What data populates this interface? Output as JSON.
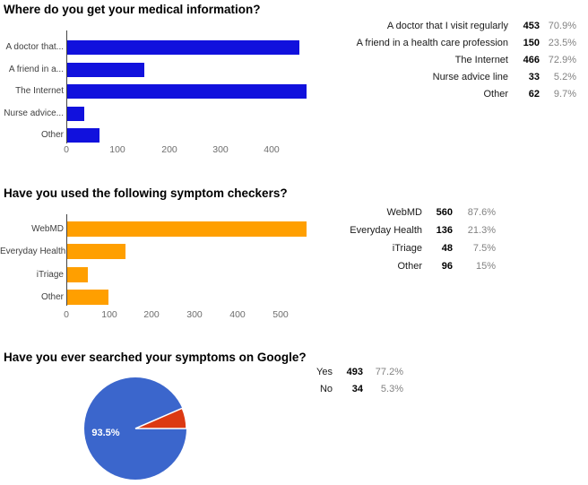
{
  "chart_data": [
    {
      "type": "bar",
      "orientation": "horizontal",
      "title": "Where do you get your medical information?",
      "categories": [
        "A doctor that...",
        "A friend in a...",
        "The Internet",
        "Nurse advice...",
        "Other"
      ],
      "values": [
        453,
        150,
        466,
        33,
        62
      ],
      "bar_color": "#1111dd",
      "xlim": [
        0,
        550
      ],
      "ticks": [
        0,
        100,
        200,
        300,
        400
      ],
      "grid": false,
      "legend": "none",
      "summary_table": {
        "rows": [
          {
            "label": "A doctor that I visit regularly",
            "value": "453",
            "percent": "70.9%"
          },
          {
            "label": "A friend in a health care profession",
            "value": "150",
            "percent": "23.5%"
          },
          {
            "label": "The Internet",
            "value": "466",
            "percent": "72.9%"
          },
          {
            "label": "Nurse advice line",
            "value": "33",
            "percent": "5.2%"
          },
          {
            "label": "Other",
            "value": "62",
            "percent": "9.7%"
          }
        ]
      }
    },
    {
      "type": "bar",
      "orientation": "horizontal",
      "title": "Have you used the following symptom checkers?",
      "categories": [
        "WebMD",
        "Everyday Health",
        "iTriage",
        "Other"
      ],
      "values": [
        560,
        136,
        48,
        96
      ],
      "bar_color": "#ff9f00",
      "xlim": [
        0,
        660
      ],
      "ticks": [
        0,
        100,
        200,
        300,
        400,
        500
      ],
      "grid": false,
      "legend": "none",
      "summary_table": {
        "rows": [
          {
            "label": "WebMD",
            "value": "560",
            "percent": "87.6%"
          },
          {
            "label": "Everyday Health",
            "value": "136",
            "percent": "21.3%"
          },
          {
            "label": "iTriage",
            "value": "48",
            "percent": "7.5%"
          },
          {
            "label": "Other",
            "value": "96",
            "percent": "15%"
          }
        ]
      }
    },
    {
      "type": "pie",
      "title": "Have you ever searched your symptoms on Google?",
      "labels": [
        "Yes",
        "No"
      ],
      "values": [
        93.5,
        6.5
      ],
      "colors": [
        "#3b66cc",
        "#dc3912"
      ],
      "slice_label": "93.5%",
      "legend": "none",
      "summary_table": {
        "rows": [
          {
            "label": "Yes",
            "value": "493",
            "percent": "77.2%"
          },
          {
            "label": "No",
            "value": "34",
            "percent": "5.3%"
          }
        ]
      }
    }
  ],
  "colors": {
    "background": "#ffffff",
    "bar_blue": "#1111dd",
    "bar_orange": "#ff9f00",
    "pie_blue": "#3b66cc",
    "pie_red": "#dc3912",
    "axis_text": "#6e6e6e",
    "table_percent_text": "#828282"
  }
}
